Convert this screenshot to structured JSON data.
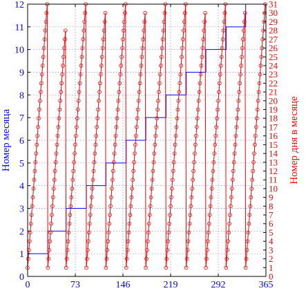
{
  "chart_data": {
    "type": "line",
    "xlabel": "",
    "x_ticks": [
      0,
      73,
      146,
      219,
      292,
      365
    ],
    "xlim": [
      0,
      365
    ],
    "y_left": {
      "label": "Номер месяца",
      "ticks": [
        0,
        1,
        2,
        3,
        4,
        5,
        6,
        7,
        8,
        9,
        10,
        11,
        12
      ],
      "lim": [
        0,
        12
      ],
      "color": "#0000ff"
    },
    "y_right": {
      "label": "Номер дня в месяце",
      "ticks": [
        0,
        1,
        2,
        3,
        4,
        5,
        6,
        7,
        8,
        9,
        10,
        11,
        12,
        13,
        14,
        15,
        16,
        17,
        18,
        19,
        20,
        21,
        22,
        23,
        24,
        25,
        26,
        27,
        28,
        29,
        30,
        31
      ],
      "lim": [
        0,
        31
      ],
      "color": "#ff0000"
    },
    "grid": true,
    "series": [
      {
        "axis": "left",
        "style": "step",
        "color": "#0000ff",
        "x": [
          0,
          31,
          59,
          90,
          120,
          151,
          181,
          212,
          243,
          273,
          304,
          334,
          365
        ],
        "values": [
          1,
          2,
          3,
          4,
          5,
          6,
          7,
          8,
          9,
          10,
          11,
          12,
          12
        ]
      },
      {
        "axis": "right",
        "style": "line-markers",
        "marker": "circle",
        "color": "#ff0000",
        "month_lengths": [
          31,
          28,
          31,
          30,
          31,
          30,
          31,
          31,
          30,
          31,
          30,
          31
        ]
      }
    ]
  }
}
